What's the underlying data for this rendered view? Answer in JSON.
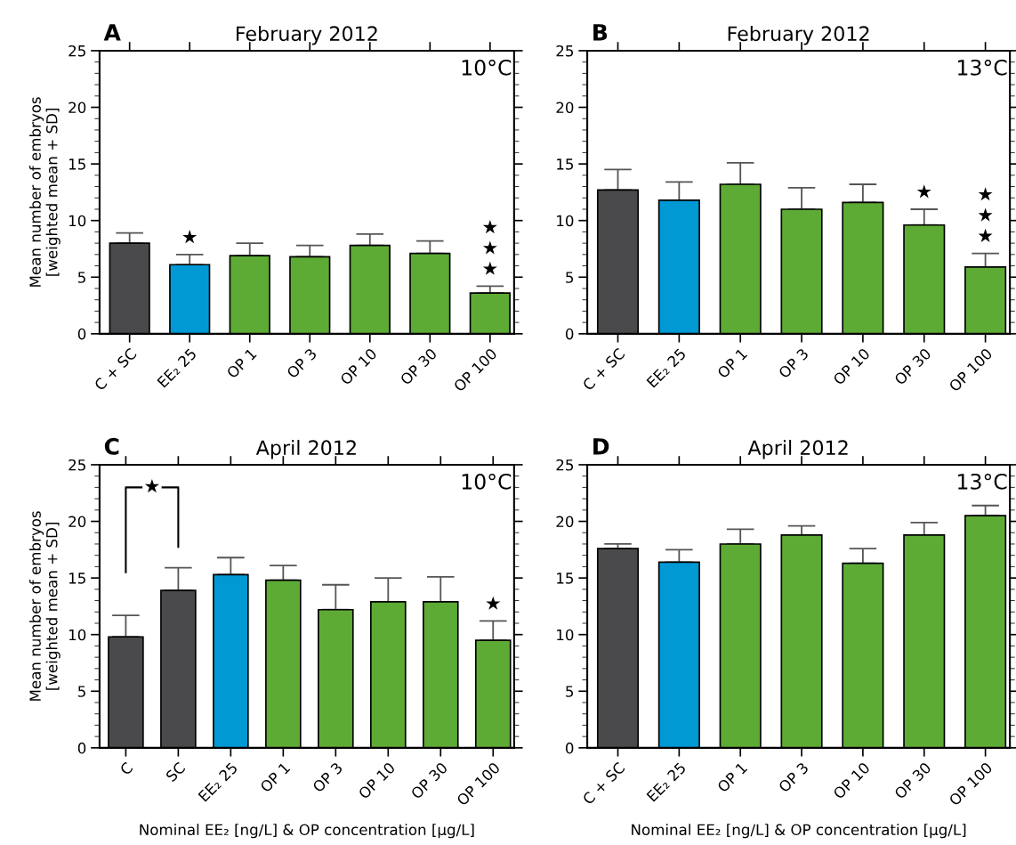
{
  "chart_data": [
    {
      "type": "bar",
      "title": "February 2012",
      "ylabel": "Mean number of embryos\n[weighted mean + SD]",
      "categories": [
        "C + SC",
        "EE₂ 25",
        "OP 1",
        "OP 3",
        "OP 10",
        "OP 30",
        "OP 100"
      ],
      "values": [
        8.0,
        6.1,
        6.9,
        6.8,
        7.8,
        7.1,
        3.6
      ],
      "colors": [
        "#4a4a4c",
        "#0099d4",
        "#5dab35",
        "#5dab35",
        "#5dab35",
        "#5dab35",
        "#5dab35"
      ],
      "errors": [
        [
          8.0,
          8.9
        ],
        [
          6.1,
          7.0
        ],
        [
          6.9,
          8.0
        ],
        [
          6.8,
          7.8
        ],
        [
          7.8,
          8.8
        ],
        [
          7.1,
          8.2
        ],
        [
          3.6,
          4.2
        ]
      ],
      "ylim": [
        0,
        25
      ],
      "yticks": [
        0,
        5,
        10,
        15,
        20,
        25
      ],
      "grid": false,
      "legend": false,
      "annotations": [
        "A",
        "10°C",
        {
          "text": "★",
          "x": "EE₂ 25",
          "y": 7.0
        },
        {
          "text": "★\n★\n★",
          "x": "OP 100",
          "y": 4.2
        }
      ]
    },
    {
      "type": "bar",
      "title": "February 2012",
      "categories": [
        "C + SC",
        "EE₂ 25",
        "OP 1",
        "OP 3",
        "OP 10",
        "OP 30",
        "OP 100"
      ],
      "values": [
        12.7,
        11.8,
        13.2,
        11.0,
        11.6,
        9.6,
        5.9
      ],
      "colors": [
        "#4a4a4c",
        "#0099d4",
        "#5dab35",
        "#5dab35",
        "#5dab35",
        "#5dab35",
        "#5dab35"
      ],
      "errors": [
        [
          12.7,
          14.5
        ],
        [
          11.8,
          13.4
        ],
        [
          13.2,
          15.1
        ],
        [
          11.0,
          12.9
        ],
        [
          11.6,
          13.2
        ],
        [
          9.6,
          11.0
        ],
        [
          5.9,
          7.1
        ]
      ],
      "ylim": [
        0,
        25
      ],
      "yticks": [
        0,
        5,
        10,
        15,
        20,
        25
      ],
      "grid": false,
      "legend": false,
      "annotations": [
        "B",
        "13°C",
        {
          "text": "★",
          "x": "OP 30",
          "y": 11.0
        },
        {
          "text": "★\n★\n★",
          "x": "OP 100",
          "y": 7.1
        }
      ]
    },
    {
      "type": "bar",
      "title": "April 2012",
      "ylabel": "Mean number of embryos\n[weighted mean + SD]",
      "xlabel": "Nominal EE₂ [ng/L] & OP concentration [µg/L]",
      "categories": [
        "C",
        "SC",
        "EE₂ 25",
        "OP 1",
        "OP 3",
        "OP 10",
        "OP 30",
        "OP 100"
      ],
      "values": [
        9.8,
        13.9,
        15.3,
        14.8,
        12.2,
        12.9,
        12.9,
        9.5
      ],
      "colors": [
        "#4a4a4c",
        "#4a4a4c",
        "#0099d4",
        "#5dab35",
        "#5dab35",
        "#5dab35",
        "#5dab35",
        "#5dab35"
      ],
      "errors": [
        [
          9.8,
          11.7
        ],
        [
          13.9,
          15.9
        ],
        [
          15.3,
          16.8
        ],
        [
          14.8,
          16.1
        ],
        [
          12.2,
          14.4
        ],
        [
          12.9,
          15.0
        ],
        [
          12.9,
          15.1
        ],
        [
          9.5,
          11.2
        ]
      ],
      "ylim": [
        0,
        25
      ],
      "yticks": [
        0,
        5,
        10,
        15,
        20,
        25
      ],
      "grid": false,
      "legend": false,
      "annotations": [
        "C",
        "10°C",
        "★",
        {
          "text": "★",
          "x": "OP 100",
          "y": 11.2
        }
      ]
    },
    {
      "type": "bar",
      "title": "April 2012",
      "xlabel": "Nominal EE₂ [ng/L] & OP concentration [µg/L]",
      "categories": [
        "C + SC",
        "EE₂ 25",
        "OP 1",
        "OP 3",
        "OP 10",
        "OP 30",
        "OP 100"
      ],
      "values": [
        17.6,
        16.4,
        18.0,
        18.8,
        16.3,
        18.8,
        20.5
      ],
      "colors": [
        "#4a4a4c",
        "#0099d4",
        "#5dab35",
        "#5dab35",
        "#5dab35",
        "#5dab35",
        "#5dab35"
      ],
      "errors": [
        [
          17.6,
          18.0
        ],
        [
          16.4,
          17.5
        ],
        [
          18.0,
          19.3
        ],
        [
          18.8,
          19.6
        ],
        [
          16.3,
          17.6
        ],
        [
          18.8,
          19.9
        ],
        [
          20.5,
          21.4
        ]
      ],
      "ylim": [
        0,
        25
      ],
      "yticks": [
        0,
        5,
        10,
        15,
        20,
        25
      ],
      "grid": false,
      "legend": false,
      "annotations": [
        "D",
        "13°C"
      ]
    }
  ]
}
